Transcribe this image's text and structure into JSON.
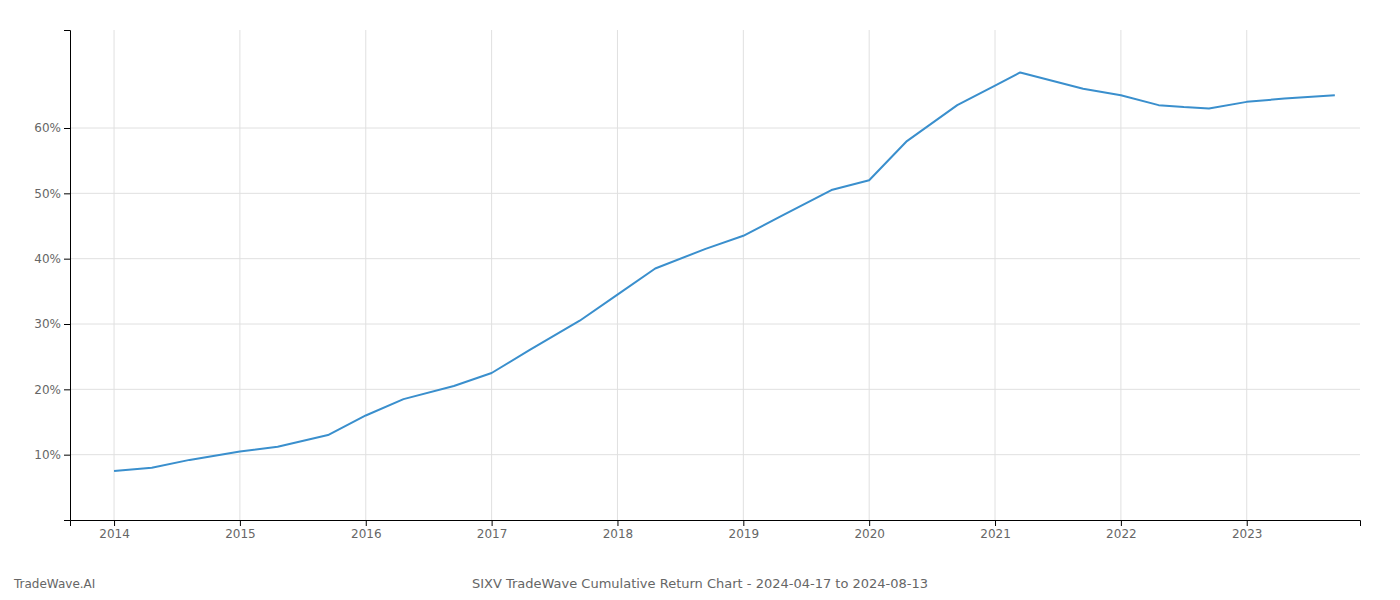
{
  "chart_data": {
    "type": "line",
    "title": "SIXV TradeWave Cumulative Return Chart - 2024-04-17 to 2024-08-13",
    "annotations": [
      "TradeWave.AI"
    ],
    "x": [
      2014.0,
      2014.3,
      2014.6,
      2015.0,
      2015.3,
      2015.7,
      2016.0,
      2016.3,
      2016.7,
      2017.0,
      2017.3,
      2017.7,
      2018.0,
      2018.3,
      2018.7,
      2019.0,
      2019.3,
      2019.7,
      2020.0,
      2020.3,
      2020.7,
      2021.0,
      2021.2,
      2021.4,
      2021.7,
      2022.0,
      2022.3,
      2022.5,
      2022.7,
      2023.0,
      2023.3,
      2023.7
    ],
    "values": [
      7.5,
      8.0,
      9.2,
      10.5,
      11.2,
      13.0,
      16.0,
      18.5,
      20.5,
      22.5,
      26.0,
      30.5,
      34.5,
      38.5,
      41.5,
      43.5,
      46.5,
      50.5,
      52.0,
      58.0,
      63.5,
      66.5,
      68.5,
      67.5,
      66.0,
      65.0,
      63.5,
      63.2,
      63.0,
      64.0,
      64.5,
      65.0
    ],
    "color": "#3a8fcd",
    "xlim": [
      2013.65,
      2023.9
    ],
    "ylim": [
      0,
      75
    ],
    "xticks": [
      2014,
      2015,
      2016,
      2017,
      2018,
      2019,
      2020,
      2021,
      2022,
      2023
    ],
    "yticks": [
      {
        "value": 10,
        "label": "10%"
      },
      {
        "value": 20,
        "label": "20%"
      },
      {
        "value": 30,
        "label": "30%"
      },
      {
        "value": 40,
        "label": "40%"
      },
      {
        "value": 50,
        "label": "50%"
      },
      {
        "value": 60,
        "label": "60%"
      }
    ],
    "grid": true
  }
}
